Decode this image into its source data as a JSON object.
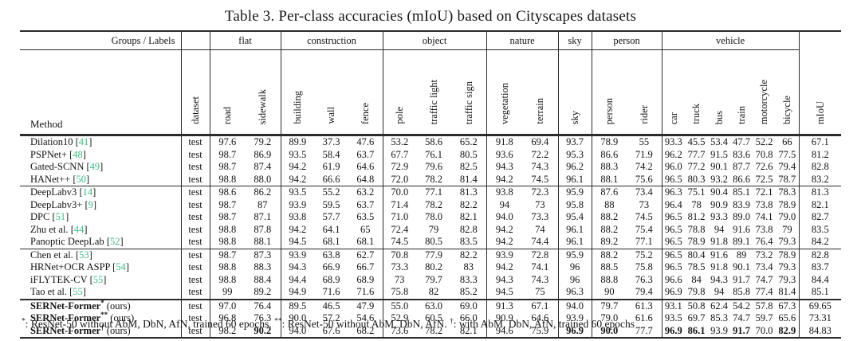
{
  "title": "Table 3. Per-class accuracies (mIoU) based on Cityscapes datasets",
  "colors": {
    "citation_green": "#3ebd83",
    "text": "#141414",
    "rule": "#2b2b2b"
  },
  "header": {
    "corner_label": "Groups / Labels",
    "method_label": "Method",
    "groups": [
      {
        "label": "",
        "span": 1
      },
      {
        "label": "flat",
        "span": 2
      },
      {
        "label": "construction",
        "span": 3
      },
      {
        "label": "object",
        "span": 3
      },
      {
        "label": "nature",
        "span": 2
      },
      {
        "label": "sky",
        "span": 1
      },
      {
        "label": "person",
        "span": 2
      },
      {
        "label": "vehicle",
        "span": 6
      },
      {
        "label": "",
        "span": 1
      }
    ],
    "columns": [
      "dataset",
      "road",
      "sidewalk",
      "building",
      "wall",
      "fence",
      "pole",
      "traffic light",
      "traffic sign",
      "vegetation",
      "terrain",
      "sky",
      "person",
      "rider",
      "car",
      "truck",
      "bus",
      "train",
      "motorcycle",
      "bicycle",
      "mIoU"
    ]
  },
  "rows": [
    {
      "method": "Dilation10",
      "cite": "41",
      "dataset": "test",
      "values": [
        "97.6",
        "79.2",
        "89.9",
        "37.3",
        "47.6",
        "53.2",
        "58.6",
        "65.2",
        "91.8",
        "69.4",
        "93.7",
        "78.9",
        "55",
        "93.3",
        "45.5",
        "53.4",
        "47.7",
        "52.2",
        "66",
        "67.1"
      ]
    },
    {
      "method": "PSPNet+",
      "cite": "48",
      "dataset": "test",
      "values": [
        "98.7",
        "86.9",
        "93.5",
        "58.4",
        "63.7",
        "67.7",
        "76.1",
        "80.5",
        "93.6",
        "72.2",
        "95.3",
        "86.6",
        "71.9",
        "96.2",
        "77.7",
        "91.5",
        "83.6",
        "70.8",
        "77.5",
        "81.2"
      ]
    },
    {
      "method": "Gated-SCNN",
      "cite": "49",
      "dataset": "test",
      "values": [
        "98.7",
        "87.4",
        "94.2",
        "61.9",
        "64.6",
        "72.9",
        "79.6",
        "82.5",
        "94.3",
        "74.3",
        "96.2",
        "88.3",
        "74.2",
        "96.0",
        "77.2",
        "90.1",
        "87.7",
        "72.6",
        "79.4",
        "82.8"
      ]
    },
    {
      "method": "HANet++",
      "cite": "50",
      "dataset": "test",
      "values": [
        "98.8",
        "88.0",
        "94.2",
        "66.6",
        "64.8",
        "72.0",
        "78.2",
        "81.4",
        "94.2",
        "74.5",
        "96.1",
        "88.1",
        "75.6",
        "96.5",
        "80.3",
        "93.2",
        "86.6",
        "72.5",
        "78.7",
        "83.2"
      ]
    },
    {
      "method": "DeepLabv3",
      "cite": "14",
      "dataset": "test",
      "group_start": true,
      "values": [
        "98.6",
        "86.2",
        "93.5",
        "55.2",
        "63.2",
        "70.0",
        "77.1",
        "81.3",
        "93.8",
        "72.3",
        "95.9",
        "87.6",
        "73.4",
        "96.3",
        "75.1",
        "90.4",
        "85.1",
        "72.1",
        "78.3",
        "81.3"
      ]
    },
    {
      "method": "DeepLabv3+",
      "cite": "9",
      "dataset": "test",
      "values": [
        "98.7",
        "87",
        "93.9",
        "59.5",
        "63.7",
        "71.4",
        "78.2",
        "82.2",
        "94",
        "73",
        "95.8",
        "88",
        "73",
        "96.4",
        "78",
        "90.9",
        "83.9",
        "73.8",
        "78.9",
        "82.1"
      ]
    },
    {
      "method": "DPC",
      "cite": "51",
      "dataset": "test",
      "values": [
        "98.7",
        "87.1",
        "93.8",
        "57.7",
        "63.5",
        "71.0",
        "78.0",
        "82.1",
        "94.0",
        "73.3",
        "95.4",
        "88.2",
        "74.5",
        "96.5",
        "81.2",
        "93.3",
        "89.0",
        "74.1",
        "79.0",
        "82.7"
      ]
    },
    {
      "method": "Zhu et al.",
      "cite": "44",
      "dataset": "test",
      "values": [
        "98.8",
        "87.8",
        "94.2",
        "64.1",
        "65",
        "72.4",
        "79",
        "82.8",
        "94.2",
        "74",
        "96.1",
        "88.2",
        "75.4",
        "96.5",
        "78.8",
        "94",
        "91.6",
        "73.8",
        "79",
        "83.5"
      ]
    },
    {
      "method": "Panoptic DeepLab",
      "cite": "52",
      "dataset": "test",
      "values": [
        "98.8",
        "88.1",
        "94.5",
        "68.1",
        "68.1",
        "74.5",
        "80.5",
        "83.5",
        "94.2",
        "74.4",
        "96.1",
        "89.2",
        "77.1",
        "96.5",
        "78.9",
        "91.8",
        "89.1",
        "76.4",
        "79.3",
        "84.2"
      ]
    },
    {
      "method": "Chen et al.",
      "cite": "53",
      "dataset": "test",
      "group_start": true,
      "values": [
        "98.7",
        "87.3",
        "93.9",
        "63.8",
        "62.7",
        "70.8",
        "77.9",
        "82.2",
        "93.9",
        "72.8",
        "95.9",
        "88.2",
        "75.2",
        "96.5",
        "80.4",
        "91.6",
        "89",
        "73.2",
        "78.9",
        "82.8"
      ]
    },
    {
      "method": "HRNet+OCR ASPP",
      "cite": "54",
      "dataset": "test",
      "values": [
        "98.8",
        "88.3",
        "94.3",
        "66.9",
        "66.7",
        "73.3",
        "80.2",
        "83",
        "94.2",
        "74.1",
        "96",
        "88.5",
        "75.8",
        "96.5",
        "78.5",
        "91.8",
        "90.1",
        "73.4",
        "79.3",
        "83.7"
      ]
    },
    {
      "method": "iFLYTEK-CV",
      "cite": "55",
      "dataset": "test",
      "values": [
        "98.8",
        "88.4",
        "94.4",
        "68.9",
        "68.9",
        "73",
        "79.7",
        "83.3",
        "94.3",
        "74.3",
        "96",
        "88.8",
        "76.3",
        "96.6",
        "84",
        "94.3",
        "91.7",
        "74.7",
        "79.3",
        "84.4"
      ]
    },
    {
      "method": "Tao et al.",
      "cite": "55",
      "dataset": "test",
      "values": [
        "99",
        "89.2",
        "94.9",
        "71.6",
        "71.6",
        "75.8",
        "82",
        "85.2",
        "94.5",
        "75",
        "96.3",
        "90",
        "79.4",
        "96.9",
        "79.8",
        "94",
        "85.8",
        "77.4",
        "81.4",
        "85.1"
      ]
    },
    {
      "method": "SERNet-Former",
      "sup": "*",
      "ours": " (ours)",
      "bold": true,
      "dataset": "test",
      "major_start": true,
      "values": [
        "97.0",
        "76.4",
        "89.5",
        "46.5",
        "47.9",
        "55.0",
        "63.0",
        "69.0",
        "91.3",
        "67.1",
        "94.0",
        "79.7",
        "61.3",
        "93.1",
        "50.8",
        "62.4",
        "54.2",
        "57.8",
        "67.3",
        "69.65"
      ]
    },
    {
      "method": "SERNet-Former",
      "sup": "**",
      "ours": " (ours)",
      "bold": true,
      "dataset": "test",
      "values": [
        "96.8",
        "76.3",
        "90.0",
        "57.2",
        "54.6",
        "52.9",
        "60.5",
        "66.0",
        "90.9",
        "64.6",
        "93.9",
        "79.0",
        "61.6",
        "93.5",
        "69.7",
        "85.3",
        "74.7",
        "59.7",
        "65.6",
        "73.31"
      ]
    },
    {
      "method": "SERNet-Former",
      "sup": "†",
      "ours": " (ours)",
      "bold": true,
      "dataset": "test",
      "bold_cols": [
        1,
        10,
        11,
        13,
        14,
        16,
        18
      ],
      "values": [
        "98.2",
        "90.2",
        "94.0",
        "67.6",
        "68.2",
        "73.6",
        "78.2",
        "82.1",
        "94.6",
        "75.9",
        "96.9",
        "90.0",
        "77.7",
        "96.9",
        "86.1",
        "93.9",
        "91.7",
        "70.0",
        "82.9",
        "84.83"
      ]
    }
  ],
  "footnote": {
    "parts": [
      {
        "sup": "*",
        "text": ": ResNet-50 without AbM, DbN, AfN, trained 60 epochs.  "
      },
      {
        "sup": "**",
        "text": ": ResNet-50 without AbM, DbN, AfN.  "
      },
      {
        "sup": "†",
        "text": ": with AbM, DbN, AfN, trained 60 epochs"
      }
    ]
  }
}
